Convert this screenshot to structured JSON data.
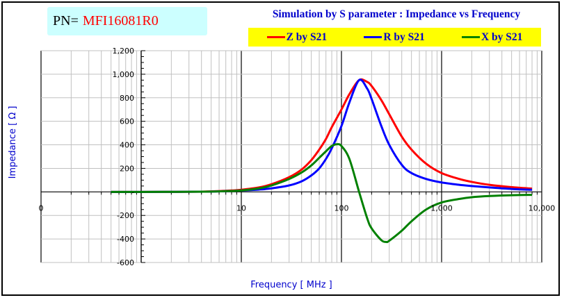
{
  "header": {
    "pn_label": "PN=",
    "pn_value": "MFI16081R0",
    "title": "Simulation by S parameter : Impedance vs Frequency"
  },
  "colors": {
    "z": "#ff0000",
    "r": "#0000ff",
    "x": "#008000",
    "title": "#0000cc",
    "legend_bg": "#ffff00",
    "pn_bg": "#ccffff",
    "grid": "#c0c0c0"
  },
  "chart_data": {
    "type": "line",
    "title": "Simulation by S parameter : Impedance vs Frequency",
    "xlabel": "Frequency [ MHz ]",
    "ylabel": "Impedance [ Ω ]",
    "xscale": "log",
    "xlim": [
      0.1,
      10000
    ],
    "ylim": [
      -600,
      1200
    ],
    "x_ticks": [
      0.1,
      10,
      100,
      1000,
      10000
    ],
    "x_tick_labels": [
      "0",
      "10",
      "100",
      "1,000",
      "10,000"
    ],
    "y_ticks": [
      1200,
      1000,
      800,
      600,
      400,
      200,
      0,
      -200,
      -400,
      -600
    ],
    "y_tick_labels": [
      "1,200",
      "1,000",
      "800",
      "600",
      "400",
      "200",
      "-",
      "-200",
      "-400",
      "-600"
    ],
    "grid": true,
    "legend": "top-right",
    "series": [
      {
        "name": "Z by S21",
        "key": "z",
        "x": [
          0.5,
          1,
          3,
          5,
          8,
          10,
          15,
          20,
          30,
          40,
          50,
          60,
          70,
          80,
          100,
          120,
          150,
          180,
          200,
          250,
          300,
          400,
          500,
          700,
          1000,
          1500,
          2000,
          3000,
          5000,
          8000
        ],
        "y": [
          0,
          0,
          1,
          4,
          12,
          18,
          38,
          65,
          125,
          190,
          270,
          360,
          450,
          550,
          700,
          830,
          950,
          935,
          900,
          780,
          660,
          470,
          360,
          240,
          160,
          110,
          85,
          60,
          40,
          28
        ]
      },
      {
        "name": "R by S21",
        "key": "r",
        "x": [
          0.5,
          1,
          3,
          5,
          8,
          10,
          15,
          20,
          30,
          40,
          50,
          60,
          70,
          80,
          100,
          120,
          150,
          180,
          200,
          250,
          300,
          400,
          500,
          700,
          1000,
          1500,
          2000,
          3000,
          5000,
          8000
        ],
        "y": [
          0,
          0,
          1,
          3,
          8,
          12,
          20,
          30,
          55,
          90,
          140,
          200,
          280,
          370,
          560,
          760,
          950,
          880,
          790,
          560,
          400,
          230,
          160,
          110,
          80,
          60,
          50,
          38,
          25,
          18
        ]
      },
      {
        "name": "X by S21",
        "key": "x",
        "x": [
          0.5,
          1,
          3,
          5,
          8,
          10,
          15,
          20,
          30,
          40,
          50,
          60,
          70,
          80,
          90,
          100,
          120,
          150,
          180,
          200,
          250,
          280,
          300,
          400,
          500,
          700,
          1000,
          1500,
          2000,
          3000,
          5000,
          8000
        ],
        "y": [
          0,
          0,
          1,
          3,
          8,
          12,
          30,
          55,
          110,
          165,
          225,
          290,
          345,
          390,
          405,
          390,
          280,
          0,
          -220,
          -310,
          -410,
          -425,
          -415,
          -330,
          -250,
          -150,
          -90,
          -60,
          -45,
          -35,
          -28,
          -25
        ]
      }
    ]
  }
}
